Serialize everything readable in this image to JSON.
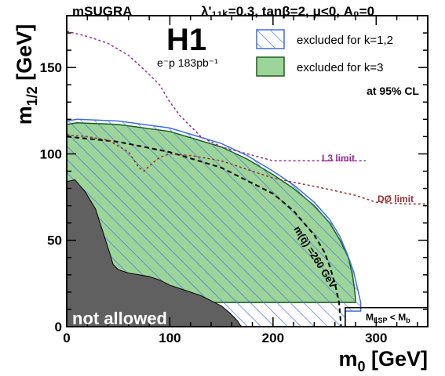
{
  "chart_data": {
    "type": "area",
    "header_left": "mSUGRA",
    "header_right": "λ'₁₁ₖ=0.3, tanβ=2, μ<0, A₀=0",
    "experiment": "H1",
    "luminosity": "e⁻p 183pb⁻¹",
    "xlabel": "m₀ [GeV]",
    "ylabel": "m₁/₂ [GeV]",
    "xlim": [
      0,
      350
    ],
    "ylim": [
      0,
      180
    ],
    "xticks": [
      0,
      100,
      200,
      300
    ],
    "yticks": [
      0,
      50,
      100,
      150
    ],
    "legend": {
      "placement": "top-right",
      "items": [
        {
          "label": "excluded for k=1,2",
          "style": "hatched",
          "color": "#3a6fe0"
        },
        {
          "label": "excluded for k=3",
          "style": "filled",
          "color": "#9dd49a",
          "edge": "#1a5e1a"
        }
      ],
      "cl_text": "at 95% CL"
    },
    "annotations": {
      "not_allowed": "not allowed",
      "l3": "L3 limit",
      "d0": "DØ limit",
      "squark_contour": "m(q̃) =260 GeV",
      "lsp": "M_LSP < M_b"
    },
    "colors": {
      "k12": "#3a6fe0",
      "k3_fill": "#9dd49a",
      "k3_edge": "#1a5e1a",
      "not_allowed": "#606060",
      "l3": "#9a2a9a",
      "d0": "#9a2e2e"
    },
    "series": [
      {
        "name": "not allowed",
        "x": [
          0,
          8,
          18,
          28,
          35,
          42,
          45,
          50,
          60,
          70,
          80,
          90,
          100,
          110,
          120,
          130,
          140,
          150,
          158,
          163,
          166,
          168,
          170,
          0
        ],
        "y": [
          84,
          85,
          78,
          68,
          55,
          42,
          36,
          33,
          31,
          30,
          29,
          27,
          24,
          22,
          20,
          18,
          15,
          12,
          8,
          5,
          3,
          1,
          0,
          0
        ]
      },
      {
        "name": "excluded for k=1,2",
        "x": [
          0,
          10,
          50,
          100,
          150,
          175,
          200,
          220,
          240,
          255,
          265,
          272,
          278,
          282,
          285,
          285,
          270,
          270,
          0
        ],
        "y": [
          119,
          120,
          119,
          115,
          106,
          99,
          90,
          82,
          72,
          62,
          52,
          42,
          32,
          22,
          14,
          9,
          9,
          0,
          0
        ]
      },
      {
        "name": "excluded for k=3",
        "x": [
          0,
          10,
          50,
          100,
          150,
          175,
          200,
          220,
          240,
          255,
          265,
          273,
          277,
          279,
          280,
          280,
          270,
          0
        ],
        "y": [
          117,
          118,
          117,
          113,
          104,
          97,
          88,
          80,
          70,
          60,
          50,
          40,
          30,
          22,
          16,
          14,
          14,
          14
        ]
      },
      {
        "name": "m(q̃) =260 GeV",
        "x": [
          0,
          50,
          100,
          150,
          200,
          220,
          240,
          250,
          255,
          260,
          264,
          266
        ],
        "y": [
          110,
          107,
          101,
          92,
          77,
          67,
          53,
          43,
          35,
          25,
          14,
          0
        ]
      },
      {
        "name": "L3 limit",
        "x": [
          0,
          20,
          40,
          60,
          80,
          90,
          100,
          110,
          130,
          150,
          175,
          200,
          230,
          260,
          290
        ],
        "y": [
          171,
          168,
          164,
          157,
          146,
          140,
          130,
          122,
          110,
          104,
          100,
          96,
          96,
          96,
          96
        ]
      },
      {
        "name": "DØ limit",
        "x": [
          0,
          20,
          40,
          60,
          70,
          75,
          80,
          90,
          100,
          120,
          150,
          200,
          250,
          280,
          300,
          330,
          350
        ],
        "y": [
          111,
          110,
          108,
          101,
          92,
          90,
          93,
          98,
          100,
          99,
          96,
          86,
          80,
          76,
          72,
          71,
          71
        ]
      },
      {
        "name": "M_LSP < M_b",
        "x": [
          270,
          270,
          350
        ],
        "y": [
          0,
          11,
          11
        ]
      }
    ]
  }
}
